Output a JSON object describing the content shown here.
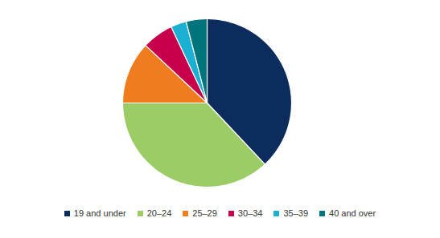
{
  "chart_data": {
    "type": "pie",
    "categories": [
      "19 and under",
      "20–24",
      "25–29",
      "30–34",
      "35–39",
      "40 and over"
    ],
    "values": [
      38,
      37,
      12,
      6,
      3,
      4
    ],
    "colors": [
      "#0c2c5e",
      "#9ccc66",
      "#ef7d1f",
      "#c8004c",
      "#1bb0d2",
      "#00747c"
    ],
    "legend": "bottom"
  }
}
